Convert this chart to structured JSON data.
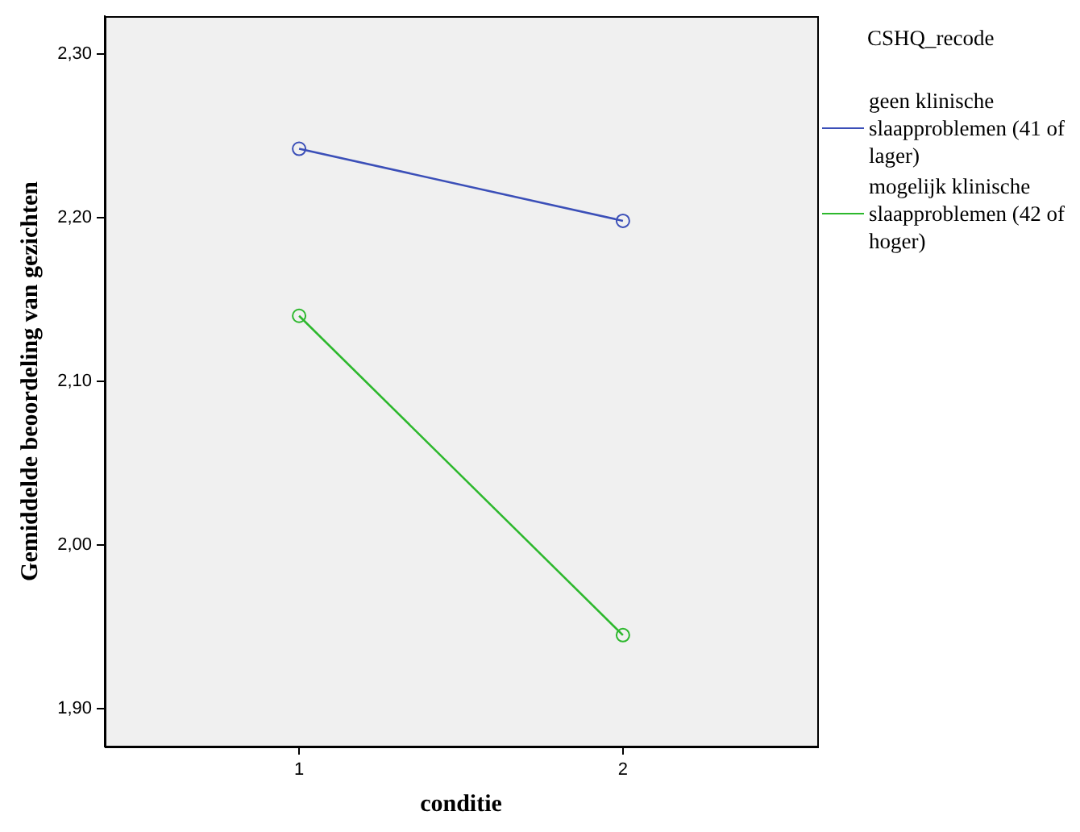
{
  "chart_data": {
    "type": "line",
    "xlabel": "conditie",
    "ylabel": "Gemiddelde beoordeling van gezichten",
    "legend_title": "CSHQ_recode",
    "x": [
      1,
      2
    ],
    "xlim": [
      0.4,
      2.6
    ],
    "xticks": [
      1,
      2
    ],
    "ylim": [
      1.877,
      2.323
    ],
    "yticks": [
      {
        "value": 1.9,
        "label": "1,90"
      },
      {
        "value": 2.0,
        "label": "2,00"
      },
      {
        "value": 2.1,
        "label": "2,10"
      },
      {
        "value": 2.2,
        "label": "2,20"
      },
      {
        "value": 2.3,
        "label": "2,30"
      }
    ],
    "series": [
      {
        "name": "geen klinische slaapproblemen (41 of lager)",
        "color": "#3b4fb8",
        "values": [
          2.242,
          2.198
        ]
      },
      {
        "name": "mogelijk klinische slaapproblemen (42 of hoger)",
        "color": "#2db82d",
        "values": [
          2.14,
          1.945
        ]
      }
    ],
    "grid": false,
    "legend": "right",
    "marker": "circle",
    "line_style": "solid"
  }
}
